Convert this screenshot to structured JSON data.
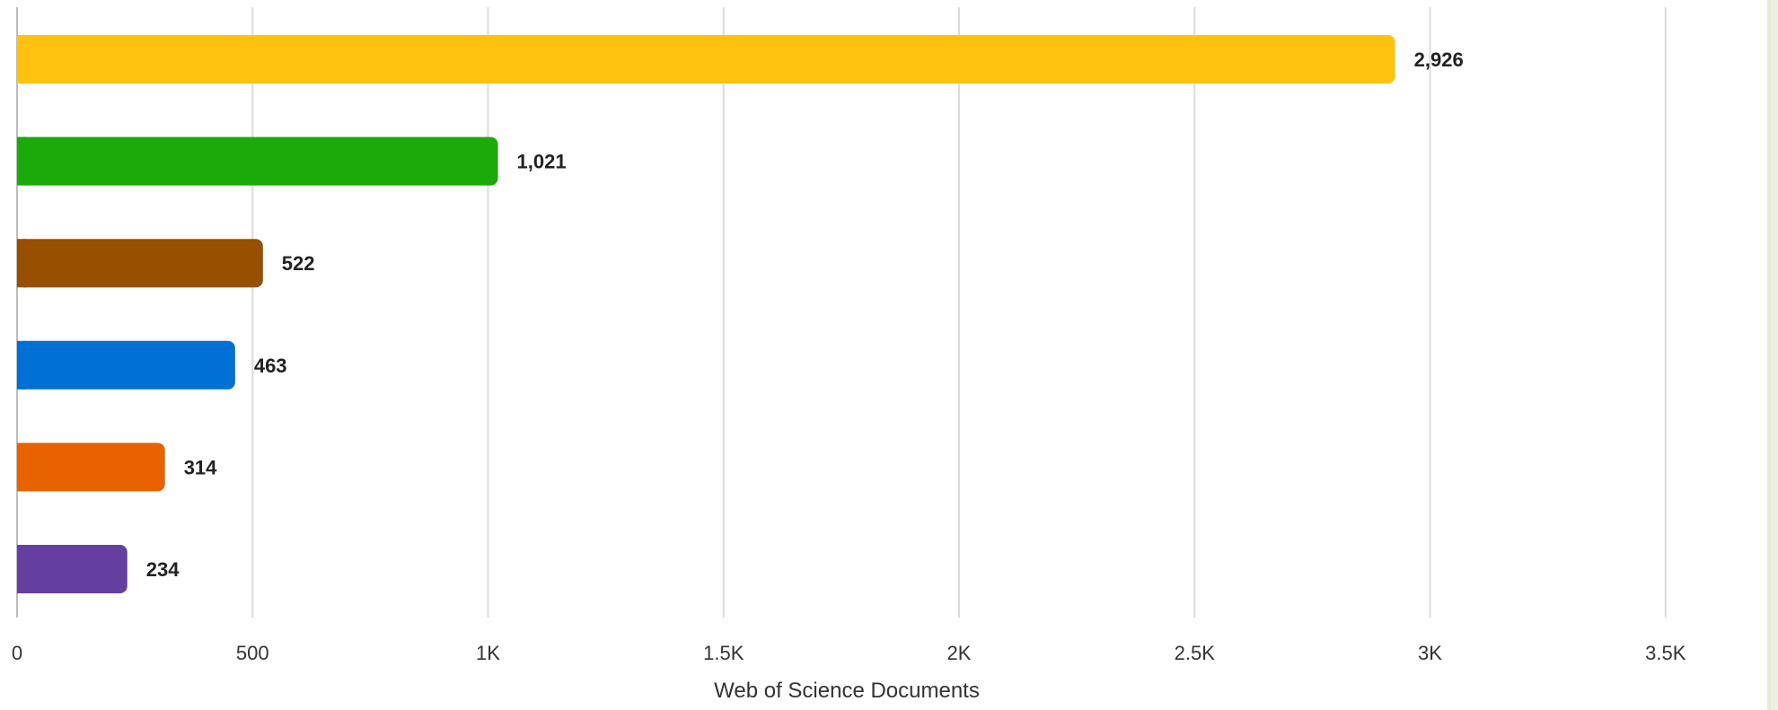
{
  "chart_data": {
    "type": "bar",
    "orientation": "horizontal",
    "xlabel": "Web of Science Documents",
    "xlim": [
      0,
      3600
    ],
    "xticks": [
      0,
      500,
      1000,
      1500,
      2000,
      2500,
      3000,
      3500
    ],
    "xtick_labels": [
      "0",
      "500",
      "1K",
      "1.5K",
      "2K",
      "2.5K",
      "3K",
      "3.5K"
    ],
    "grid": true,
    "values": [
      2926,
      1021,
      522,
      463,
      314,
      234
    ],
    "value_labels": [
      "2,926",
      "1,021",
      "522",
      "463",
      "314",
      "234"
    ],
    "colors": [
      "#FFC20E",
      "#1AAA0A",
      "#974F00",
      "#0070D6",
      "#E86300",
      "#6640A0"
    ]
  }
}
